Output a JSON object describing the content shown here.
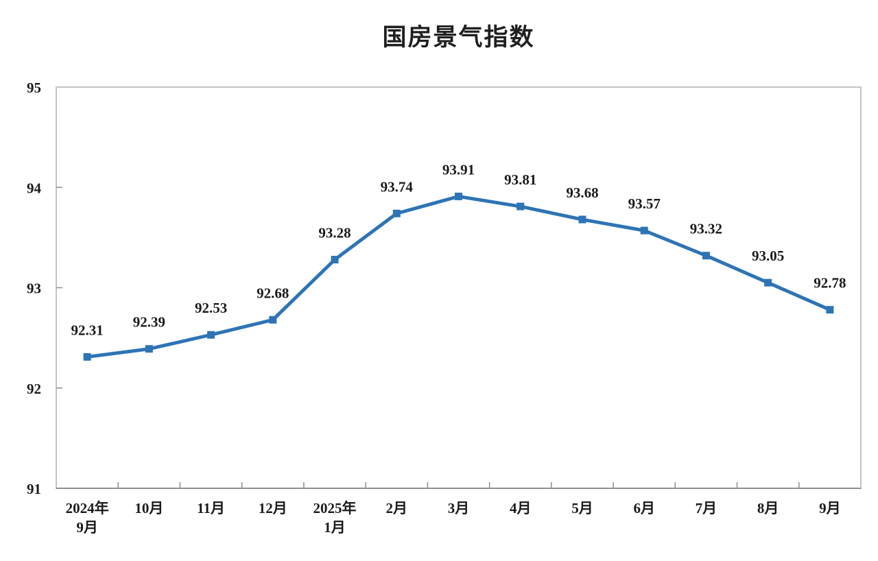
{
  "page": {
    "title": "国房景气指数"
  },
  "chart_data": {
    "type": "line",
    "title": "国房景气指数",
    "series_name": "国房景气指数",
    "categories": [
      [
        "2024年",
        "9月"
      ],
      [
        "10月"
      ],
      [
        "11月"
      ],
      [
        "12月"
      ],
      [
        "2025年",
        "1月"
      ],
      [
        "2月"
      ],
      [
        "3月"
      ],
      [
        "4月"
      ],
      [
        "5月"
      ],
      [
        "6月"
      ],
      [
        "7月"
      ],
      [
        "8月"
      ],
      [
        "9月"
      ]
    ],
    "values": [
      92.31,
      92.39,
      92.53,
      92.68,
      93.28,
      93.74,
      93.91,
      93.81,
      93.68,
      93.57,
      93.32,
      93.05,
      92.78
    ],
    "data_labels": [
      "92.31",
      "92.39",
      "92.53",
      "92.68",
      "93.28",
      "93.74",
      "93.91",
      "93.81",
      "93.68",
      "93.57",
      "93.32",
      "93.05",
      "92.78"
    ],
    "xlabel": "",
    "ylabel": "",
    "ylim": [
      91,
      95
    ],
    "yticks": [
      91,
      92,
      93,
      94,
      95
    ],
    "grid": false,
    "legend_position": "none",
    "line_color": "#2E74B5",
    "marker": "square",
    "axis_border_color": "#c3c3c3",
    "axis_line_color": "#8c8c8c",
    "label_color": "#1a1a1a"
  }
}
